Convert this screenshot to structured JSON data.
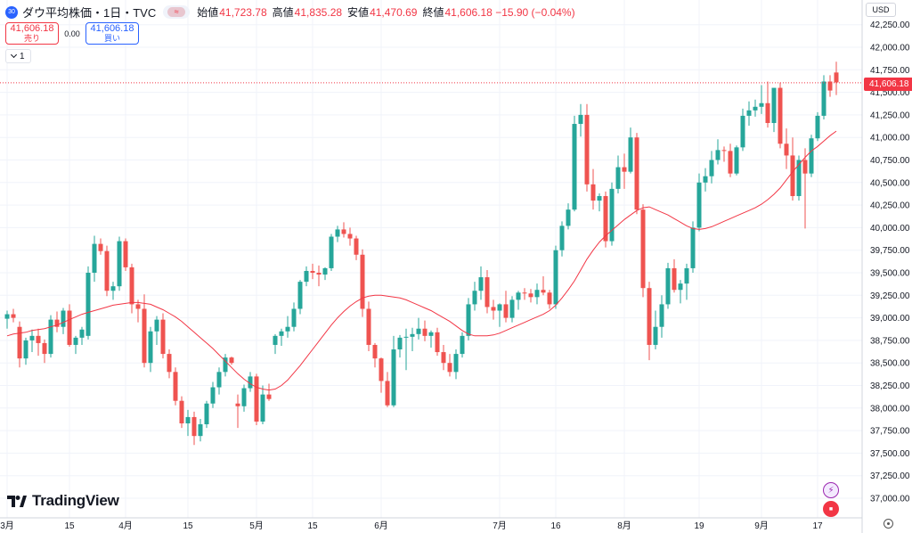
{
  "header": {
    "symbol_badge": "30",
    "symbol_title": "ダウ平均株価・1日・TVC",
    "compare_glyph": "≈",
    "ohlc": [
      {
        "label": "始値",
        "value": "41,723.78"
      },
      {
        "label": "高値",
        "value": "41,835.28"
      },
      {
        "label": "安値",
        "value": "41,470.69"
      },
      {
        "label": "終値",
        "value": "41,606.18 −15.90 (−0.04%)"
      }
    ]
  },
  "trade": {
    "sell_price": "41,606.18",
    "sell_label": "売り",
    "spread": "0.00",
    "buy_price": "41,606.18",
    "buy_label": "買い"
  },
  "indicator": {
    "count": "1",
    "icon": "chevron-down-icon"
  },
  "currency": "USD",
  "current_price_label": "41,606.18",
  "logo_text": "TradingView",
  "icons": {
    "event_lightning": "lightning-icon",
    "event_flag": "us-flag-icon",
    "settings": "settings-icon"
  },
  "colors": {
    "up": "#26a69a",
    "down": "#ef5350",
    "ma": "#f23645",
    "grid": "#f0f3fa",
    "accent": "#2962ff"
  },
  "chart_data": {
    "type": "candlestick",
    "y_axis": {
      "min": 36800,
      "max": 42450,
      "tick_step": 250,
      "ticks": [
        "37,000.00",
        "37,250.00",
        "37,500.00",
        "37,750.00",
        "38,000.00",
        "38,250.00",
        "38,500.00",
        "38,750.00",
        "39,000.00",
        "39,250.00",
        "39,500.00",
        "39,750.00",
        "40,000.00",
        "40,250.00",
        "40,500.00",
        "40,750.00",
        "41,000.00",
        "41,250.00",
        "41,500.00",
        "41,750.00",
        "42,000.00",
        "42,250.00"
      ],
      "position": "right"
    },
    "x_axis": {
      "ticks": [
        {
          "label": "3月",
          "bar": 0
        },
        {
          "label": "15",
          "bar": 10
        },
        {
          "label": "4月",
          "bar": 19
        },
        {
          "label": "15",
          "bar": 29
        },
        {
          "label": "5月",
          "bar": 40
        },
        {
          "label": "15",
          "bar": 49
        },
        {
          "label": "6月",
          "bar": 60
        },
        {
          "label": "7月",
          "bar": 79
        },
        {
          "label": "16",
          "bar": 88
        },
        {
          "label": "8月",
          "bar": 99
        },
        {
          "label": "19",
          "bar": 111
        },
        {
          "label": "9月",
          "bar": 121
        },
        {
          "label": "17",
          "bar": 130
        }
      ]
    },
    "grid": true,
    "current_price": 41606.18,
    "series": [
      {
        "type": "candlestick",
        "candles": [
          [
            38990,
            39080,
            38880,
            39040
          ],
          [
            39040,
            39100,
            38950,
            39000
          ],
          [
            38900,
            38960,
            38450,
            38550
          ],
          [
            38550,
            38780,
            38480,
            38750
          ],
          [
            38750,
            38870,
            38620,
            38800
          ],
          [
            38800,
            38880,
            38580,
            38720
          ],
          [
            38720,
            38760,
            38500,
            38600
          ],
          [
            38600,
            39030,
            38560,
            38980
          ],
          [
            38980,
            39070,
            38840,
            38900
          ],
          [
            38900,
            39110,
            38820,
            39080
          ],
          [
            39080,
            39150,
            38680,
            38700
          ],
          [
            38700,
            38800,
            38600,
            38780
          ],
          [
            38780,
            38900,
            38700,
            38870
          ],
          [
            38800,
            39570,
            38760,
            39500
          ],
          [
            39500,
            39910,
            39400,
            39820
          ],
          [
            39820,
            39880,
            39700,
            39740
          ],
          [
            39740,
            39800,
            39240,
            39300
          ],
          [
            39300,
            39400,
            39200,
            39350
          ],
          [
            39350,
            39900,
            39300,
            39850
          ],
          [
            39850,
            39880,
            39520,
            39560
          ],
          [
            39560,
            39600,
            39050,
            39150
          ],
          [
            39150,
            39200,
            38950,
            39100
          ],
          [
            39100,
            39260,
            38450,
            38500
          ],
          [
            38500,
            38900,
            38400,
            38850
          ],
          [
            38850,
            39020,
            38700,
            38980
          ],
          [
            38980,
            39050,
            38550,
            38600
          ],
          [
            38600,
            38650,
            38330,
            38400
          ],
          [
            38400,
            38450,
            38030,
            38080
          ],
          [
            38080,
            38130,
            37780,
            37830
          ],
          [
            37830,
            37980,
            37690,
            37900
          ],
          [
            37900,
            37960,
            37590,
            37690
          ],
          [
            37690,
            37880,
            37630,
            37820
          ],
          [
            37820,
            38080,
            37780,
            38050
          ],
          [
            38050,
            38290,
            38000,
            38230
          ],
          [
            38230,
            38450,
            38150,
            38400
          ],
          [
            38400,
            38600,
            38350,
            38560
          ],
          [
            38560,
            38570,
            38480,
            38500
          ],
          [
            38050,
            38150,
            37780,
            38020
          ],
          [
            38020,
            38260,
            37960,
            38220
          ],
          [
            38220,
            38400,
            38180,
            38350
          ],
          [
            38350,
            38380,
            37810,
            37850
          ],
          [
            37850,
            38250,
            37820,
            38150
          ],
          [
            38150,
            38270,
            38080,
            38100
          ],
          [
            38700,
            38820,
            38600,
            38800
          ],
          [
            38800,
            38880,
            38690,
            38850
          ],
          [
            38850,
            39020,
            38780,
            38900
          ],
          [
            38900,
            39170,
            38850,
            39100
          ],
          [
            39100,
            39420,
            39040,
            39400
          ],
          [
            39400,
            39570,
            39350,
            39520
          ],
          [
            39520,
            39600,
            39430,
            39500
          ],
          [
            39500,
            39580,
            39350,
            39480
          ],
          [
            39480,
            39560,
            39420,
            39550
          ],
          [
            39550,
            39930,
            39520,
            39900
          ],
          [
            39900,
            40020,
            39840,
            39980
          ],
          [
            39980,
            40060,
            39890,
            39930
          ],
          [
            39930,
            40000,
            39800,
            39880
          ],
          [
            39880,
            39910,
            39640,
            39700
          ],
          [
            39700,
            39760,
            39010,
            39100
          ],
          [
            39100,
            39180,
            38630,
            38700
          ],
          [
            38700,
            38720,
            38450,
            38550
          ],
          [
            38550,
            38560,
            38170,
            38300
          ],
          [
            38300,
            38400,
            38010,
            38030
          ],
          [
            38030,
            38800,
            38010,
            38650
          ],
          [
            38650,
            38810,
            38560,
            38780
          ],
          [
            38780,
            38880,
            38420,
            38790
          ],
          [
            38790,
            38890,
            38630,
            38820
          ],
          [
            38820,
            39000,
            38760,
            38880
          ],
          [
            38880,
            38970,
            38740,
            38800
          ],
          [
            38800,
            38860,
            38670,
            38840
          ],
          [
            38840,
            38890,
            38580,
            38620
          ],
          [
            38620,
            38700,
            38420,
            38500
          ],
          [
            38500,
            38600,
            38350,
            38400
          ],
          [
            38400,
            38650,
            38320,
            38600
          ],
          [
            38600,
            38840,
            38560,
            38800
          ],
          [
            38800,
            39220,
            38750,
            39150
          ],
          [
            39150,
            39400,
            39080,
            39300
          ],
          [
            39300,
            39570,
            39200,
            39450
          ],
          [
            39450,
            39530,
            39050,
            39120
          ],
          [
            39120,
            39200,
            38980,
            39080
          ],
          [
            39080,
            39160,
            38900,
            39150
          ],
          [
            39150,
            39300,
            38950,
            39000
          ],
          [
            39000,
            39240,
            38950,
            39200
          ],
          [
            39200,
            39300,
            39090,
            39280
          ],
          [
            39280,
            39330,
            39200,
            39270
          ],
          [
            39270,
            39320,
            39170,
            39230
          ],
          [
            39230,
            39380,
            39150,
            39310
          ],
          [
            39310,
            39460,
            39250,
            39280
          ],
          [
            39280,
            39310,
            39100,
            39150
          ],
          [
            39150,
            39800,
            39100,
            39750
          ],
          [
            39750,
            40070,
            39680,
            40020
          ],
          [
            40020,
            40270,
            39980,
            40200
          ],
          [
            40200,
            41240,
            40180,
            41150
          ],
          [
            41150,
            41370,
            41010,
            41250
          ],
          [
            41250,
            41370,
            40400,
            40480
          ],
          [
            40480,
            40650,
            40200,
            40300
          ],
          [
            40300,
            40380,
            40180,
            40350
          ],
          [
            40350,
            40400,
            39780,
            39850
          ],
          [
            39850,
            40500,
            39800,
            40430
          ],
          [
            40430,
            40800,
            40380,
            40670
          ],
          [
            40670,
            40820,
            40430,
            40620
          ],
          [
            40620,
            41110,
            40600,
            41000
          ],
          [
            41000,
            41050,
            40150,
            40200
          ],
          [
            40200,
            40260,
            39230,
            39330
          ],
          [
            39330,
            39400,
            38530,
            38700
          ],
          [
            38700,
            39080,
            38650,
            38900
          ],
          [
            38900,
            39250,
            38780,
            39150
          ],
          [
            39150,
            39610,
            39100,
            39550
          ],
          [
            39550,
            39650,
            39280,
            39310
          ],
          [
            39310,
            39420,
            39160,
            39380
          ],
          [
            39380,
            39600,
            39200,
            39550
          ],
          [
            39550,
            40070,
            39500,
            40000
          ],
          [
            40000,
            40600,
            39960,
            40500
          ],
          [
            40500,
            40660,
            40400,
            40570
          ],
          [
            40570,
            40850,
            40490,
            40750
          ],
          [
            40750,
            40980,
            40700,
            40860
          ],
          [
            40860,
            40900,
            40730,
            40850
          ],
          [
            40850,
            40930,
            40560,
            40600
          ],
          [
            40600,
            40910,
            40580,
            40890
          ],
          [
            40890,
            41320,
            40850,
            41240
          ],
          [
            41240,
            41400,
            41130,
            41300
          ],
          [
            41300,
            41420,
            41230,
            41340
          ],
          [
            41340,
            41580,
            41260,
            41380
          ],
          [
            41380,
            41620,
            41110,
            41160
          ],
          [
            41160,
            41520,
            41060,
            41550
          ],
          [
            41550,
            41610,
            40880,
            40930
          ],
          [
            40930,
            41100,
            40650,
            40800
          ],
          [
            40800,
            41000,
            40300,
            40350
          ],
          [
            40350,
            40800,
            40300,
            40750
          ],
          [
            40750,
            40880,
            39990,
            40600
          ],
          [
            40600,
            41030,
            40560,
            40990
          ],
          [
            40990,
            41280,
            40960,
            41240
          ],
          [
            41240,
            41690,
            41200,
            41620
          ],
          [
            41620,
            41690,
            41450,
            41520
          ],
          [
            41720,
            41840,
            41470,
            41610
          ]
        ]
      },
      {
        "type": "line",
        "ma": [
          38800,
          38820,
          38830,
          38840,
          38860,
          38870,
          38880,
          38900,
          38920,
          38950,
          38980,
          39010,
          39040,
          39060,
          39080,
          39100,
          39120,
          39140,
          39150,
          39160,
          39170,
          39170,
          39160,
          39150,
          39120,
          39090,
          39050,
          39010,
          38960,
          38900,
          38840,
          38780,
          38720,
          38660,
          38590,
          38520,
          38450,
          38380,
          38320,
          38270,
          38230,
          38210,
          38200,
          38210,
          38250,
          38310,
          38390,
          38470,
          38560,
          38650,
          38740,
          38830,
          38920,
          39000,
          39070,
          39130,
          39180,
          39220,
          39240,
          39250,
          39250,
          39240,
          39230,
          39220,
          39200,
          39170,
          39140,
          39110,
          39080,
          39040,
          39000,
          38960,
          38910,
          38860,
          38820,
          38800,
          38800,
          38800,
          38810,
          38830,
          38860,
          38890,
          38920,
          38950,
          38980,
          39010,
          39040,
          39080,
          39140,
          39220,
          39310,
          39410,
          39530,
          39650,
          39750,
          39840,
          39910,
          39970,
          40030,
          40090,
          40140,
          40190,
          40220,
          40230,
          40200,
          40170,
          40140,
          40100,
          40060,
          40020,
          39990,
          39980,
          39990,
          40010,
          40040,
          40070,
          40100,
          40130,
          40160,
          40190,
          40220,
          40260,
          40310,
          40370,
          40440,
          40530,
          40620,
          40700,
          40780,
          40850,
          40900,
          40960,
          41020,
          41070
        ]
      }
    ]
  }
}
